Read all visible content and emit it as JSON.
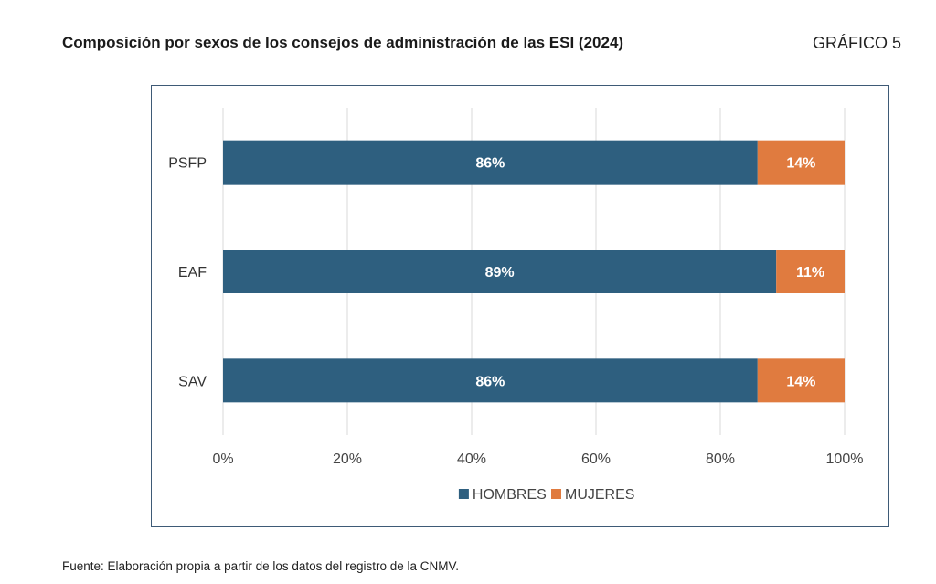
{
  "header": {
    "title": "Composición por sexos de los consejos de administración de las ESI (2024)",
    "figure_label": "GRÁFICO 5"
  },
  "footer": {
    "source": "Fuente: Elaboración propia a partir de los datos del registro de la CNMV."
  },
  "colors": {
    "hombres": "#2e5f7f",
    "mujeres": "#e07b3f",
    "grid": "#d9d9d9",
    "frame": "#3e5a76"
  },
  "chart_data": {
    "type": "bar",
    "orientation": "horizontal",
    "stacked": "percent",
    "categories": [
      "PSFP",
      "EAF",
      "SAV"
    ],
    "series": [
      {
        "name": "HOMBRES",
        "values": [
          86,
          89,
          86
        ],
        "labels": [
          "86%",
          "89%",
          "86%"
        ]
      },
      {
        "name": "MUJERES",
        "values": [
          14,
          11,
          14
        ],
        "labels": [
          "14%",
          "11%",
          "14%"
        ]
      }
    ],
    "xlim": [
      0,
      100
    ],
    "xticks": [
      "0%",
      "20%",
      "40%",
      "60%",
      "80%",
      "100%"
    ],
    "grid": true,
    "legend": "bottom-center"
  }
}
